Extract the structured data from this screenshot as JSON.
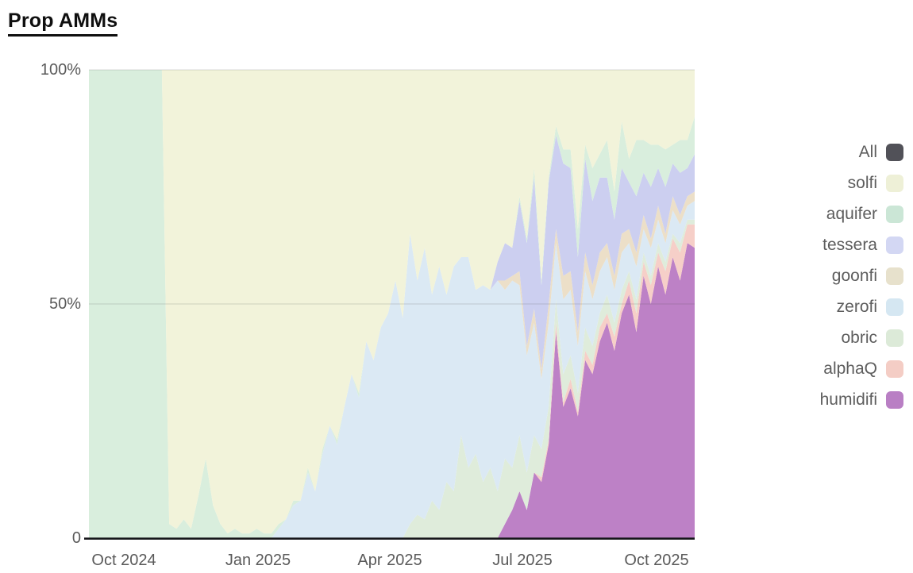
{
  "page": {
    "title": "Prop AMMs"
  },
  "legend": {
    "items": [
      {
        "label": "All",
        "color": "#515158"
      },
      {
        "label": "solfi",
        "color": "#eef0d7"
      },
      {
        "label": "aquifer",
        "color": "#cbe6d6"
      },
      {
        "label": "tessera",
        "color": "#d3d7f3"
      },
      {
        "label": "goonfi",
        "color": "#e7e1cc"
      },
      {
        "label": "zerofi",
        "color": "#d5e7f2"
      },
      {
        "label": "obric",
        "color": "#dcead8"
      },
      {
        "label": "alphaQ",
        "color": "#f4cdc5"
      },
      {
        "label": "humidifi",
        "color": "#b97fc4"
      }
    ]
  },
  "chart_data": {
    "type": "area",
    "stacked": true,
    "title": "Prop AMMs",
    "unit": "percent share of volume",
    "x_tick_labels": [
      "Oct 2024",
      "Jan 2025",
      "Apr 2025",
      "Jul 2025",
      "Oct 2025"
    ],
    "x_tick_days": [
      24,
      116,
      206,
      297,
      389
    ],
    "x_total_days": 415,
    "x_step_days": 5,
    "x_range_note": "samples every 5 days from early Sep 2024 to late Oct 2025",
    "y_tick_labels": [
      "100%",
      "50%",
      "0"
    ],
    "ylim": [
      0,
      100
    ],
    "grid_y_values": [
      50,
      100
    ],
    "legend_position": "right",
    "stack_order": "bottom to top as listed",
    "series": [
      {
        "name": "humidifi",
        "color": "#bd81c6",
        "values": [
          0,
          0,
          0,
          0,
          0,
          0,
          0,
          0,
          0,
          0,
          0,
          0,
          0,
          0,
          0,
          0,
          0,
          0,
          0,
          0,
          0,
          0,
          0,
          0,
          0,
          0,
          0,
          0,
          0,
          0,
          0,
          0,
          0,
          0,
          0,
          0,
          0,
          0,
          0,
          0,
          0,
          0,
          0,
          0,
          0,
          0,
          0,
          0,
          0,
          0,
          0,
          0,
          0,
          0,
          0,
          0,
          0,
          3,
          6,
          10,
          6,
          14,
          12,
          20,
          44,
          28,
          32,
          26,
          38,
          35,
          42,
          46,
          40,
          48,
          52,
          44,
          56,
          50,
          58,
          52,
          60,
          55,
          63,
          62
        ]
      },
      {
        "name": "alphaQ",
        "color": "#f6cfc8",
        "values": [
          0,
          0,
          0,
          0,
          0,
          0,
          0,
          0,
          0,
          0,
          0,
          0,
          0,
          0,
          0,
          0,
          0,
          0,
          0,
          0,
          0,
          0,
          0,
          0,
          0,
          0,
          0,
          0,
          0,
          0,
          0,
          0,
          0,
          0,
          0,
          0,
          0,
          0,
          0,
          0,
          0,
          0,
          0,
          0,
          0,
          0,
          0,
          0,
          0,
          0,
          0,
          0,
          0,
          0,
          0,
          0,
          0,
          0,
          0,
          0,
          0,
          0,
          1,
          1,
          2,
          1,
          2,
          1,
          2,
          2,
          3,
          2,
          3,
          2,
          3,
          4,
          3,
          4,
          3,
          5,
          4,
          6,
          4,
          5
        ]
      },
      {
        "name": "obric",
        "color": "#dfecdb",
        "values": [
          0,
          0,
          0,
          0,
          0,
          0,
          0,
          0,
          0,
          0,
          0,
          0,
          0,
          0,
          0,
          0,
          0,
          0,
          0,
          0,
          0,
          0,
          0,
          0,
          0,
          0,
          0,
          0,
          0,
          0,
          0,
          0,
          0,
          0,
          0,
          0,
          0,
          0,
          0,
          0,
          0,
          0,
          0,
          0,
          3,
          5,
          4,
          8,
          6,
          12,
          10,
          22,
          15,
          18,
          12,
          15,
          10,
          14,
          9,
          12,
          8,
          8,
          6,
          7,
          5,
          6,
          5,
          4,
          5,
          4,
          3,
          4,
          3,
          3,
          2,
          3,
          2,
          2,
          2,
          2,
          1,
          2,
          1,
          1
        ]
      },
      {
        "name": "zerofi",
        "color": "#dbe9f4",
        "values": [
          0,
          0,
          0,
          0,
          0,
          0,
          0,
          0,
          0,
          0,
          0,
          0,
          0,
          0,
          0,
          0,
          0,
          0,
          0,
          0,
          0,
          0,
          0,
          0,
          0,
          0,
          2,
          4,
          7,
          8,
          14,
          10,
          18,
          24,
          20,
          28,
          35,
          30,
          42,
          38,
          45,
          48,
          55,
          47,
          62,
          50,
          58,
          44,
          52,
          40,
          48,
          38,
          45,
          35,
          42,
          38,
          45,
          36,
          40,
          32,
          25,
          24,
          15,
          18,
          12,
          16,
          14,
          10,
          12,
          10,
          9,
          8,
          7,
          8,
          6,
          7,
          5,
          6,
          5,
          4,
          5,
          4,
          3,
          4
        ]
      },
      {
        "name": "goonfi",
        "color": "#ecdfc8",
        "values": [
          0,
          0,
          0,
          0,
          0,
          0,
          0,
          0,
          0,
          0,
          0,
          0,
          0,
          0,
          0,
          0,
          0,
          0,
          0,
          0,
          0,
          0,
          0,
          0,
          0,
          0,
          0,
          0,
          0,
          0,
          0,
          0,
          0,
          0,
          0,
          0,
          0,
          0,
          0,
          0,
          0,
          0,
          0,
          0,
          0,
          0,
          0,
          0,
          0,
          0,
          0,
          0,
          0,
          0,
          0,
          0,
          0,
          2,
          1,
          3,
          2,
          3,
          2,
          4,
          3,
          5,
          4,
          3,
          4,
          3,
          4,
          3,
          3,
          4,
          3,
          3,
          3,
          2,
          3,
          2,
          3,
          2,
          2,
          2
        ]
      },
      {
        "name": "tessera",
        "color": "#cccff0",
        "values": [
          0,
          0,
          0,
          0,
          0,
          0,
          0,
          0,
          0,
          0,
          0,
          0,
          0,
          0,
          0,
          0,
          0,
          0,
          0,
          0,
          0,
          0,
          0,
          0,
          0,
          0,
          0,
          0,
          0,
          0,
          0,
          0,
          0,
          0,
          0,
          0,
          0,
          0,
          0,
          0,
          0,
          0,
          0,
          0,
          0,
          0,
          0,
          0,
          0,
          0,
          0,
          0,
          0,
          0,
          0,
          0,
          4,
          8,
          6,
          15,
          22,
          28,
          18,
          26,
          20,
          24,
          22,
          16,
          20,
          18,
          16,
          14,
          12,
          14,
          10,
          12,
          9,
          11,
          8,
          10,
          7,
          9,
          6,
          8
        ]
      },
      {
        "name": "aquifer",
        "color": "#d9eedd",
        "values": [
          100,
          100,
          100,
          100,
          100,
          100,
          100,
          100,
          100,
          100,
          100,
          3,
          2,
          4,
          2,
          9,
          17,
          7,
          3,
          1,
          2,
          1,
          1,
          2,
          1,
          1,
          1,
          0,
          1,
          0,
          1,
          0,
          1,
          0,
          1,
          0,
          0,
          1,
          0,
          0,
          0,
          0,
          0,
          0,
          0,
          0,
          0,
          0,
          0,
          0,
          0,
          0,
          0,
          0,
          0,
          0,
          0,
          0,
          0,
          1,
          1,
          2,
          1,
          1,
          2,
          3,
          4,
          6,
          3,
          7,
          5,
          8,
          6,
          10,
          5,
          12,
          7,
          9,
          5,
          8,
          4,
          7,
          6,
          8
        ]
      },
      {
        "name": "solfi",
        "color": "#f2f3da",
        "values": [
          0,
          0,
          0,
          0,
          0,
          0,
          0,
          0,
          0,
          0,
          0,
          97,
          98,
          96,
          98,
          91,
          83,
          93,
          97,
          99,
          98,
          99,
          99,
          98,
          99,
          99,
          97,
          96,
          92,
          92,
          85,
          90,
          81,
          76,
          79,
          72,
          65,
          69,
          58,
          62,
          55,
          52,
          45,
          53,
          35,
          45,
          38,
          48,
          42,
          48,
          42,
          40,
          40,
          47,
          46,
          47,
          41,
          37,
          38,
          27,
          36,
          21,
          45,
          23,
          12,
          17,
          17,
          34,
          16,
          21,
          18,
          15,
          26,
          11,
          19,
          15,
          15,
          16,
          16,
          17,
          16,
          15,
          15,
          10
        ]
      }
    ]
  }
}
